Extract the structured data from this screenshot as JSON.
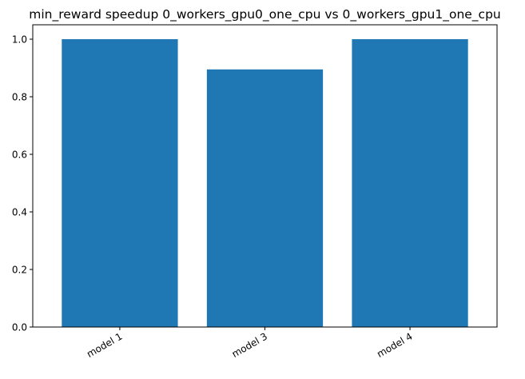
{
  "chart_data": {
    "type": "bar",
    "title": "min_reward speedup 0_workers_gpu0_one_cpu vs 0_workers_gpu1_one_cpu",
    "xlabel": "",
    "ylabel": "",
    "categories": [
      "model 1",
      "model 3",
      "model 4"
    ],
    "values": [
      1.0,
      0.895,
      1.0
    ],
    "ylim": [
      0,
      1.05
    ],
    "yticks": [
      0.0,
      0.2,
      0.4,
      0.6,
      0.8,
      1.0
    ],
    "ytick_labels": [
      "0.0",
      "0.2",
      "0.4",
      "0.6",
      "0.8",
      "1.0"
    ],
    "grid": false,
    "legend": "none",
    "x_tick_rotation": "30 degrees, right-aligned",
    "bar_color": "#1f77b4"
  }
}
